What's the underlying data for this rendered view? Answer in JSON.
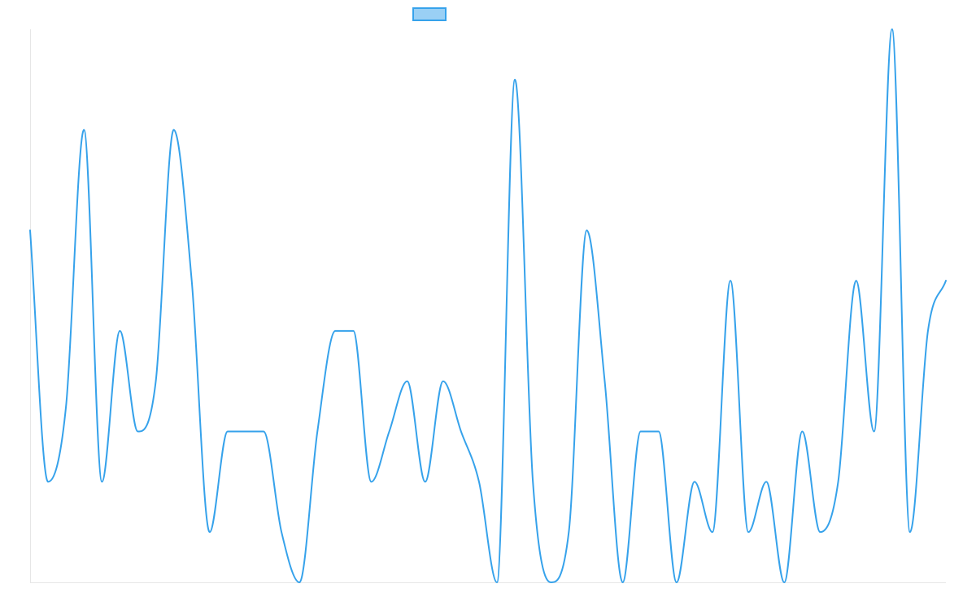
{
  "chart_data": {
    "type": "line",
    "title": "",
    "xlabel": "",
    "ylabel": "",
    "grid": false,
    "legend_position": "top-center",
    "ylim": [
      0,
      11
    ],
    "x": [
      1,
      2,
      3,
      4,
      5,
      6,
      7,
      8,
      9,
      10,
      11,
      12,
      13,
      14,
      15,
      16,
      17,
      18,
      19,
      20,
      21,
      22,
      23,
      24,
      25,
      26,
      27,
      28,
      29,
      30,
      31,
      32,
      33,
      34,
      35,
      36,
      37,
      38,
      39,
      40,
      41,
      42,
      43,
      44,
      45,
      46,
      47,
      48,
      49,
      50,
      51,
      52
    ],
    "series": [
      {
        "values": [
          7,
          2,
          3.5,
          9,
          2,
          5,
          3,
          4,
          9,
          6,
          1,
          3,
          3,
          3,
          1,
          0,
          3,
          5,
          5,
          2,
          3,
          4,
          2,
          4,
          3,
          2,
          0,
          10,
          2,
          0,
          1,
          7,
          4,
          0,
          3,
          3,
          0,
          2,
          1,
          6,
          1,
          2,
          0,
          3,
          1,
          2,
          6,
          3,
          11,
          1,
          5,
          6
        ],
        "color": "#36a2eb",
        "legend_fill": "#9ad0f5"
      }
    ]
  }
}
